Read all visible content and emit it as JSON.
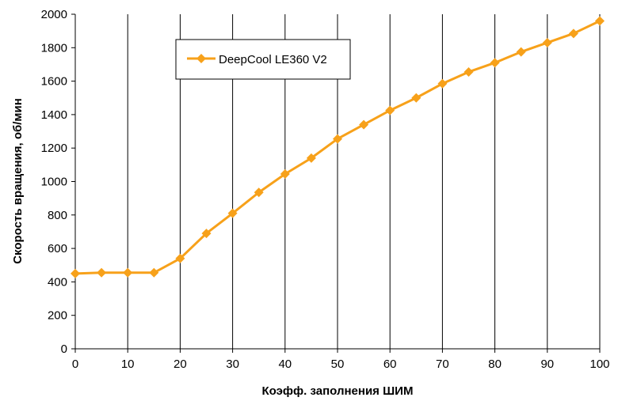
{
  "chart_data": {
    "type": "line",
    "title": "",
    "xlabel": "Коэфф. заполнения ШИМ",
    "ylabel": "Скорость вращения, об/мин",
    "xlim": [
      0,
      100
    ],
    "ylim": [
      0,
      2000
    ],
    "x_ticks": [
      0,
      10,
      20,
      30,
      40,
      50,
      60,
      70,
      80,
      90,
      100
    ],
    "y_ticks": [
      0,
      200,
      400,
      600,
      800,
      1000,
      1200,
      1400,
      1600,
      1800,
      2000
    ],
    "grid": "vertical gridlines",
    "legend_position": "top-left",
    "series": [
      {
        "name": "DeepCool LE360 V2",
        "color": "#F7A11A",
        "marker": "diamond",
        "x": [
          0,
          5,
          10,
          15,
          20,
          25,
          30,
          35,
          40,
          45,
          50,
          55,
          60,
          65,
          70,
          75,
          80,
          85,
          90,
          95,
          100
        ],
        "y": [
          450,
          455,
          455,
          455,
          540,
          690,
          810,
          935,
          1045,
          1140,
          1255,
          1340,
          1425,
          1500,
          1585,
          1655,
          1710,
          1775,
          1830,
          1885,
          1960
        ]
      }
    ]
  }
}
